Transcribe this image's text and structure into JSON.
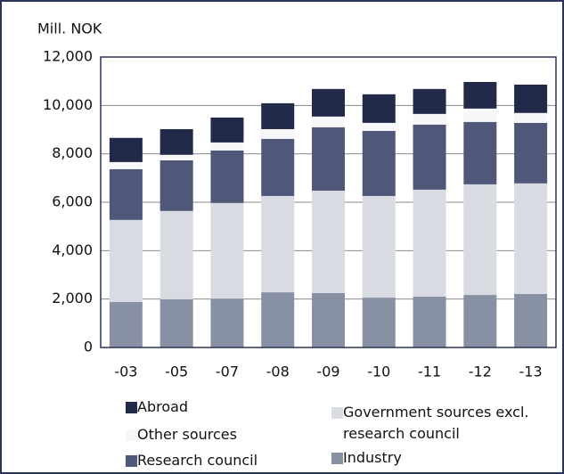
{
  "chart_data": {
    "type": "stacked_bar",
    "y_label": "Mill. NOK",
    "categories": [
      "-03",
      "-05",
      "-07",
      "-08",
      "-09",
      "-10",
      "-11",
      "-12",
      "-13"
    ],
    "series": [
      {
        "name": "Industry",
        "color": "#8891a4",
        "values": [
          1880,
          1990,
          2020,
          2280,
          2250,
          2060,
          2100,
          2170,
          2210
        ]
      },
      {
        "name": "Government sources excl. research council",
        "color": "#d8dbe2",
        "values": [
          3390,
          3650,
          3950,
          3980,
          4230,
          4200,
          4420,
          4570,
          4570
        ]
      },
      {
        "name": "Research council",
        "color": "#4f5878",
        "values": [
          2100,
          2090,
          2170,
          2360,
          2620,
          2690,
          2690,
          2580,
          2500
        ]
      },
      {
        "name": "Other sources",
        "color": "#f7f7f9",
        "values": [
          290,
          230,
          330,
          400,
          440,
          330,
          440,
          550,
          410
        ]
      },
      {
        "name": "Abroad",
        "color": "#222a4a",
        "values": [
          1000,
          1060,
          1030,
          1070,
          1140,
          1180,
          1030,
          1100,
          1170
        ]
      }
    ],
    "ylim": [
      0,
      12000
    ],
    "yticks": [
      0,
      {
        "value": 2000,
        "label": "2,000"
      },
      {
        "value": 4000,
        "label": "4,000"
      },
      {
        "value": 6000,
        "label": "6,000"
      },
      {
        "value": 8000,
        "label": "8,000"
      },
      {
        "value": 10000,
        "label": "10,000"
      },
      {
        "value": 12000,
        "label": "12,000"
      }
    ],
    "grid": true
  }
}
